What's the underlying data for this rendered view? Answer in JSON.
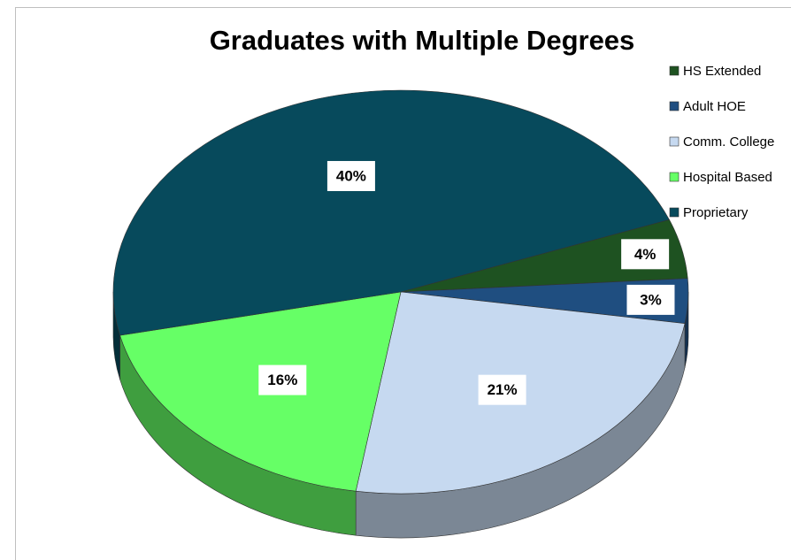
{
  "chart_data": {
    "type": "pie",
    "title": "Graduates with Multiple Degrees",
    "categories": [
      "HS Extended",
      "Adult HOE",
      "Comm. College",
      "Hospital Based",
      "Proprietary"
    ],
    "values": [
      4,
      3,
      21,
      16,
      40
    ],
    "value_labels": [
      "4%",
      "3%",
      "21%",
      "16%",
      "40%"
    ],
    "colors": [
      "#1e5221",
      "#1f4e80",
      "#c6d9f0",
      "#66ff66",
      "#074a5c"
    ],
    "legend": "right"
  }
}
